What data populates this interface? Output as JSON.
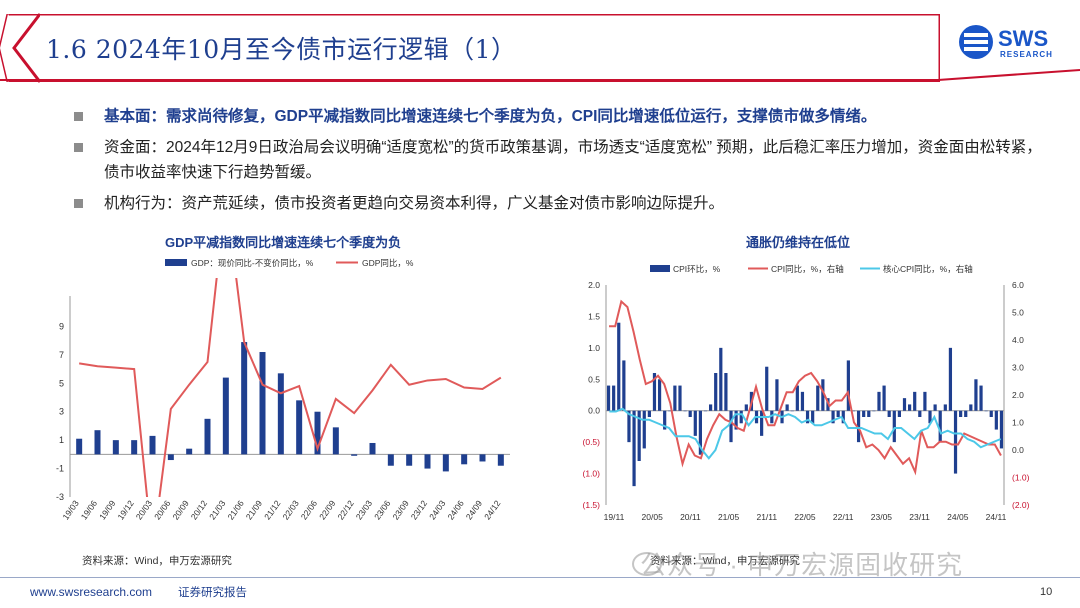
{
  "header": {
    "title": "1.6 2024年10月至今债市运行逻辑（1）",
    "logo_main": "SWS",
    "logo_sub": "RESEARCH"
  },
  "bullets": [
    {
      "text": "基本面：需求尚待修复，GDP平减指数同比增速连续七个季度为负，CPI同比增速低位运行，支撑债市做多情绪。"
    },
    {
      "text": "资金面：2024年12月9日政治局会议明确“适度宽松”的货币政策基调，市场透支“适度宽松”  预期，此后稳汇率压力增加，资金面由松转紧，债市收益率快速下行趋势暂缓。"
    },
    {
      "text": "机构行为：资产荒延续，债市投资者更趋向交易资本利得，广义基金对债市影响边际提升。"
    }
  ],
  "colors": {
    "navy": "#1f3f8f",
    "bar": "#1f3f8f",
    "red": "#e05a5a",
    "cyan": "#4cc8e8",
    "title_bar": "#c8102e"
  },
  "chart_data": [
    {
      "type": "bar",
      "title": "GDP平减指数同比增速连续七个季度为负",
      "legend": [
        "GDP：现价同比-不变价同比，%",
        "GDP同比，%"
      ],
      "ylim": [
        -3,
        11
      ],
      "y_ticks": [
        "9",
        "7",
        "5",
        "3",
        "1",
        "-1",
        "-3"
      ],
      "x_labels": [
        "19/03",
        "19/06",
        "19/09",
        "19/12",
        "20/03",
        "20/06",
        "20/09",
        "20/12",
        "21/03",
        "21/06",
        "21/09",
        "21/12",
        "22/03",
        "22/06",
        "22/09",
        "22/12",
        "23/03",
        "23/06",
        "23/09",
        "23/12",
        "24/03",
        "24/06",
        "24/09",
        "24/12"
      ],
      "series": [
        {
          "name": "GDP：现价同比-不变价同比，%",
          "type": "bar",
          "values": [
            1.1,
            1.7,
            1.0,
            1.0,
            1.3,
            -0.4,
            0.4,
            2.5,
            5.4,
            7.9,
            7.2,
            5.7,
            3.8,
            3.0,
            1.9,
            -0.1,
            0.8,
            -0.8,
            -0.8,
            -1.0,
            -1.2,
            -0.7,
            -0.5,
            -0.8
          ]
        },
        {
          "name": "GDP同比，%",
          "type": "line",
          "values": [
            6.4,
            6.2,
            6.1,
            6.0,
            -6.8,
            3.2,
            4.9,
            6.5,
            18.3,
            7.9,
            4.9,
            4.3,
            4.8,
            0.4,
            3.9,
            2.9,
            4.5,
            6.3,
            4.9,
            5.2,
            5.3,
            4.7,
            4.6,
            5.4
          ]
        }
      ],
      "source": "资料来源：Wind，申万宏源研究"
    },
    {
      "type": "bar",
      "title": "通胀仍维持在低位",
      "legend": [
        "CPI环比，%",
        "CPI同比，%，右轴",
        "核心CPI同比，%，右轴"
      ],
      "ylim_left": [
        -1.5,
        2.0
      ],
      "ylim_right": [
        -2.0,
        6.0
      ],
      "y_ticks_left": [
        "2.0",
        "1.5",
        "1.0",
        "0.5",
        "0.0",
        "(0.5)",
        "(1.0)",
        "(1.5)"
      ],
      "y_ticks_right": [
        "6.0",
        "5.0",
        "4.0",
        "3.0",
        "2.0",
        "1.0",
        "0.0",
        "(1.0)",
        "(2.0)"
      ],
      "x_labels": [
        "19/11",
        "20/05",
        "20/11",
        "21/05",
        "21/11",
        "22/05",
        "22/11",
        "23/05",
        "23/11",
        "24/05",
        "24/11"
      ],
      "series": [
        {
          "name": "CPI环比，%",
          "type": "bar",
          "values": [
            0.4,
            0.4,
            1.4,
            0.8,
            -0.5,
            -1.2,
            -0.8,
            -0.6,
            -0.1,
            0.6,
            0.5,
            -0.3,
            0.0,
            0.4,
            0.4,
            0.0,
            -0.1,
            -0.4,
            -0.7,
            0.0,
            0.1,
            0.6,
            1.0,
            0.6,
            -0.5,
            -0.3,
            -0.2,
            0.1,
            0.3,
            -0.2,
            -0.4,
            0.7,
            -0.2,
            0.5,
            -0.2,
            0.1,
            0.0,
            0.4,
            0.3,
            -0.2,
            -0.2,
            0.4,
            0.5,
            0.2,
            -0.2,
            -0.1,
            -0.2,
            0.8,
            0.0,
            -0.5,
            -0.1,
            -0.1,
            0.0,
            0.3,
            0.4,
            -0.1,
            -0.5,
            -0.1,
            0.2,
            0.1,
            0.3,
            -0.1,
            0.3,
            -0.2,
            0.1,
            -0.5,
            0.1,
            1.0,
            -1.0,
            -0.1,
            -0.1,
            0.1,
            0.5,
            0.4,
            0.0,
            -0.1,
            -0.3,
            -0.6
          ]
        },
        {
          "name": "CPI同比，%，右轴",
          "type": "line",
          "axis": "right",
          "values": [
            4.5,
            4.5,
            5.4,
            5.2,
            4.3,
            3.3,
            2.4,
            2.5,
            2.7,
            2.4,
            1.7,
            0.5,
            -0.5,
            0.2,
            -0.2,
            -0.3,
            0.4,
            0.9,
            1.3,
            1.1,
            1.0,
            0.8,
            0.7,
            1.5,
            2.3,
            1.5,
            0.9,
            0.9,
            1.5,
            2.1,
            2.1,
            2.5,
            2.7,
            2.8,
            2.5,
            2.1,
            1.6,
            1.8,
            1.8,
            2.1,
            1.0,
            0.7,
            0.1,
            0.2,
            0.0,
            -0.3,
            0.1,
            -0.2,
            -0.5,
            -0.3,
            -0.8,
            0.7,
            0.1,
            0.1,
            0.3,
            0.3,
            0.2,
            0.2,
            0.6,
            0.5,
            0.4,
            0.3,
            0.2,
            0.2,
            -0.2
          ]
        },
        {
          "name": "核心CPI同比，%，右轴",
          "type": "line",
          "axis": "right",
          "values": [
            1.4,
            1.4,
            1.5,
            1.3,
            1.2,
            1.1,
            1.1,
            1.0,
            0.9,
            0.8,
            0.5,
            0.5,
            0.5,
            0.4,
            0.0,
            -0.3,
            0.0,
            0.7,
            0.9,
            1.3,
            1.3,
            0.9,
            1.2,
            1.2,
            1.2,
            1.3,
            1.2,
            1.3,
            1.2,
            1.0,
            1.1,
            0.9,
            0.9,
            1.0,
            1.1,
            1.2,
            0.8,
            0.8,
            0.8,
            0.7,
            0.6,
            0.6,
            0.4,
            0.8,
            0.8,
            0.6,
            0.4,
            0.7,
            0.8,
            1.2,
            0.6,
            0.7,
            0.6,
            0.6,
            0.4,
            0.3,
            0.1,
            0.2,
            0.3,
            0.4
          ]
        }
      ],
      "source": "资料来源：Wind，申万宏源研究"
    }
  ],
  "footer": {
    "url": "www.swsresearch.com",
    "label": "证券研究报告",
    "page": "10",
    "watermark": "公众号 · 申万宏源固收研究"
  }
}
